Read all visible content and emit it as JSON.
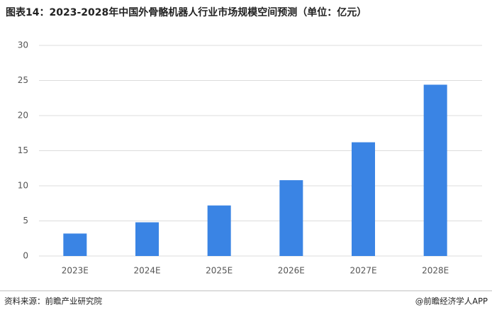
{
  "chart_data": {
    "type": "bar",
    "title": "图表14：2023-2028年中国外骨骼机器人行业市场规模空间预测（单位：亿元）",
    "categories": [
      "2023E",
      "2024E",
      "2025E",
      "2026E",
      "2027E",
      "2028E"
    ],
    "values": [
      3.2,
      4.8,
      7.2,
      10.8,
      16.2,
      24.4
    ],
    "color": "#3a84e4",
    "ylim": [
      0,
      30
    ],
    "yticks": [
      0,
      5,
      10,
      15,
      20,
      25,
      30
    ],
    "grid": true,
    "source": "资料来源：前瞻产业研究院",
    "credit": "@前瞻经济学人APP"
  }
}
